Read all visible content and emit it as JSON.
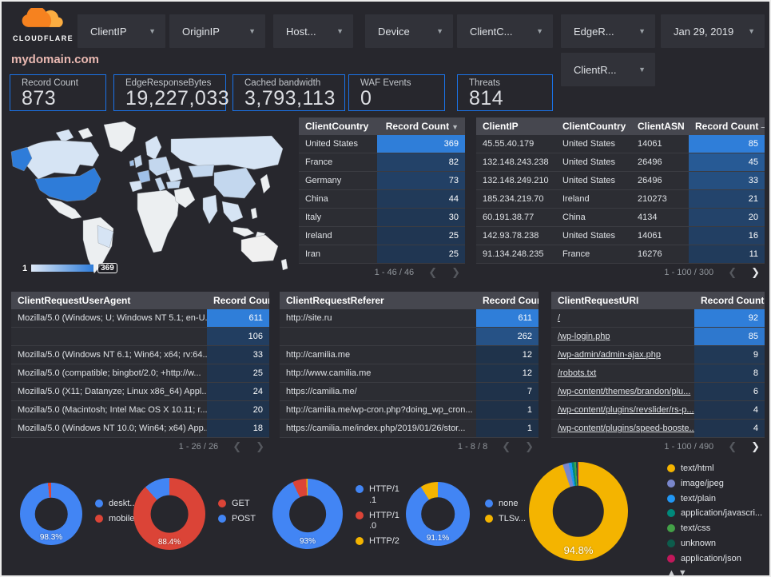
{
  "brand": {
    "logo_text": "CLOUDFLARE"
  },
  "title": "mydomain.com",
  "filters": {
    "row1": [
      "ClientIP",
      "OriginIP",
      "Host...",
      "Device",
      "ClientC...",
      "EdgeR..."
    ],
    "row2": [
      "ClientR..."
    ],
    "date": "Jan 29, 2019"
  },
  "scorecards": [
    {
      "label": "Record Count",
      "value": "873"
    },
    {
      "label": "EdgeResponseBytes",
      "value": "19,227,033"
    },
    {
      "label": "Cached bandwidth",
      "value": "3,793,113"
    },
    {
      "label": "WAF Events",
      "value": "0"
    },
    {
      "label": "Threats",
      "value": "814"
    }
  ],
  "map": {
    "legend_min": "1",
    "legend_max": "369"
  },
  "tables": [
    {
      "id": "client_country",
      "columns": [
        {
          "label": "ClientCountry"
        },
        {
          "label": "Record Count",
          "sort": "▼"
        }
      ],
      "max": 369,
      "rows": [
        [
          "United States",
          369
        ],
        [
          "France",
          82
        ],
        [
          "Germany",
          73
        ],
        [
          "China",
          44
        ],
        [
          "Italy",
          30
        ],
        [
          "Ireland",
          25
        ],
        [
          "Iran",
          25
        ]
      ],
      "pagination": {
        "label": "1 - 46 / 46",
        "prev_enabled": false,
        "next_enabled": false
      }
    },
    {
      "id": "client_ip",
      "columns": [
        {
          "label": "ClientIP"
        },
        {
          "label": "ClientCountry"
        },
        {
          "label": "ClientASN"
        },
        {
          "label": "Record Count",
          "sort": "–"
        }
      ],
      "max": 85,
      "rows": [
        [
          "45.55.40.179",
          "United States",
          "14061",
          85
        ],
        [
          "132.148.243.238",
          "United States",
          "26496",
          45
        ],
        [
          "132.148.249.210",
          "United States",
          "26496",
          33
        ],
        [
          "185.234.219.70",
          "Ireland",
          "210273",
          21
        ],
        [
          "60.191.38.77",
          "China",
          "4134",
          20
        ],
        [
          "142.93.78.238",
          "United States",
          "14061",
          16
        ],
        [
          "91.134.248.235",
          "France",
          "16276",
          11
        ]
      ],
      "pagination": {
        "label": "1 - 100 / 300",
        "prev_enabled": false,
        "next_enabled": true
      }
    },
    {
      "id": "user_agent",
      "columns": [
        {
          "label": "ClientRequestUserAgent"
        },
        {
          "label": "Record Count",
          "sort": "▼"
        }
      ],
      "max": 611,
      "rows": [
        [
          "Mozilla/5.0 (Windows; U; Windows NT 5.1; en-U...",
          611
        ],
        [
          "",
          106
        ],
        [
          "Mozilla/5.0 (Windows NT 6.1; Win64; x64; rv:64...",
          33
        ],
        [
          "Mozilla/5.0 (compatible; bingbot/2.0; +http://w...",
          25
        ],
        [
          "Mozilla/5.0 (X11; Datanyze; Linux x86_64) Appl...",
          24
        ],
        [
          "Mozilla/5.0 (Macintosh; Intel Mac OS X 10.11; r...",
          20
        ],
        [
          "Mozilla/5.0 (Windows NT 10.0; Win64; x64) App...",
          18
        ]
      ],
      "pagination": {
        "label": "1 - 26 / 26",
        "prev_enabled": false,
        "next_enabled": false
      }
    },
    {
      "id": "referer",
      "columns": [
        {
          "label": "ClientRequestReferer"
        },
        {
          "label": "Record Count",
          "sort": "▼"
        }
      ],
      "max": 611,
      "rows": [
        [
          "http://site.ru",
          611
        ],
        [
          "",
          262
        ],
        [
          "http://camilia.me",
          12
        ],
        [
          "http://www.camilia.me",
          12
        ],
        [
          "https://camilia.me/",
          7
        ],
        [
          "http://camilia.me/wp-cron.php?doing_wp_cron...",
          1
        ],
        [
          "https://camilia.me/index.php/2019/01/26/stor...",
          1
        ]
      ],
      "pagination": {
        "label": "1 - 8 / 8",
        "prev_enabled": false,
        "next_enabled": false
      }
    },
    {
      "id": "uri",
      "columns": [
        {
          "label": "ClientRequestURI"
        },
        {
          "label": "Record Count",
          "sort": "–"
        }
      ],
      "max": 92,
      "link_dimension": true,
      "rows": [
        [
          "/",
          92
        ],
        [
          "/wp-login.php",
          85
        ],
        [
          "/wp-admin/admin-ajax.php",
          9
        ],
        [
          "/robots.txt",
          8
        ],
        [
          "/wp-content/themes/brandon/plu...",
          6
        ],
        [
          "/wp-content/plugins/revslider/rs-p...",
          4
        ],
        [
          "/wp-content/plugins/speed-booste...",
          4
        ]
      ],
      "pagination": {
        "label": "1 - 100 / 490",
        "prev_enabled": false,
        "next_enabled": true
      }
    }
  ],
  "donuts": [
    {
      "id": "device_type",
      "percent_label": "98.3%",
      "slices": [
        {
          "name": "deskt...",
          "value": 98.3,
          "color": "#4285f4"
        },
        {
          "name": "mobile",
          "value": 1.7,
          "color": "#db4437"
        }
      ]
    },
    {
      "id": "request_method",
      "percent_label": "88.4%",
      "slices": [
        {
          "name": "GET",
          "value": 88.4,
          "color": "#db4437"
        },
        {
          "name": "POST",
          "value": 11.6,
          "color": "#4285f4"
        }
      ]
    },
    {
      "id": "http_version",
      "percent_label": "93%",
      "slices": [
        {
          "name": "HTTP/1.1",
          "value": 93,
          "color": "#4285f4"
        },
        {
          "name": "HTTP/1.0",
          "value": 6.4,
          "color": "#db4437"
        },
        {
          "name": "HTTP/2",
          "value": 0.6,
          "color": "#f4b400"
        }
      ]
    },
    {
      "id": "tls_version",
      "percent_label": "91.1%",
      "slices": [
        {
          "name": "none",
          "value": 91.1,
          "color": "#4285f4"
        },
        {
          "name": "TLSv...",
          "value": 8.9,
          "color": "#f4b400"
        }
      ]
    },
    {
      "id": "content_type",
      "percent_label": "94.8%",
      "has_legend_arrows": true,
      "slices": [
        {
          "name": "text/html",
          "value": 94.8,
          "color": "#f4b400"
        },
        {
          "name": "image/jpeg",
          "value": 2.0,
          "color": "#7986cb"
        },
        {
          "name": "text/plain",
          "value": 1.0,
          "color": "#2196f3"
        },
        {
          "name": "application/javascri...",
          "value": 0.8,
          "color": "#00897b"
        },
        {
          "name": "text/css",
          "value": 0.6,
          "color": "#43a047"
        },
        {
          "name": "unknown",
          "value": 0.5,
          "color": "#0d5c4c"
        },
        {
          "name": "application/json",
          "value": 0.3,
          "color": "#c2185b"
        }
      ]
    }
  ],
  "colors": {
    "heat_low": "#1f3148",
    "heat_high": "#2f7ed9",
    "scorecard_border": "#1a73e8",
    "cloud_orange": "#f6821f",
    "cloud_orange_light": "#fbad41"
  }
}
